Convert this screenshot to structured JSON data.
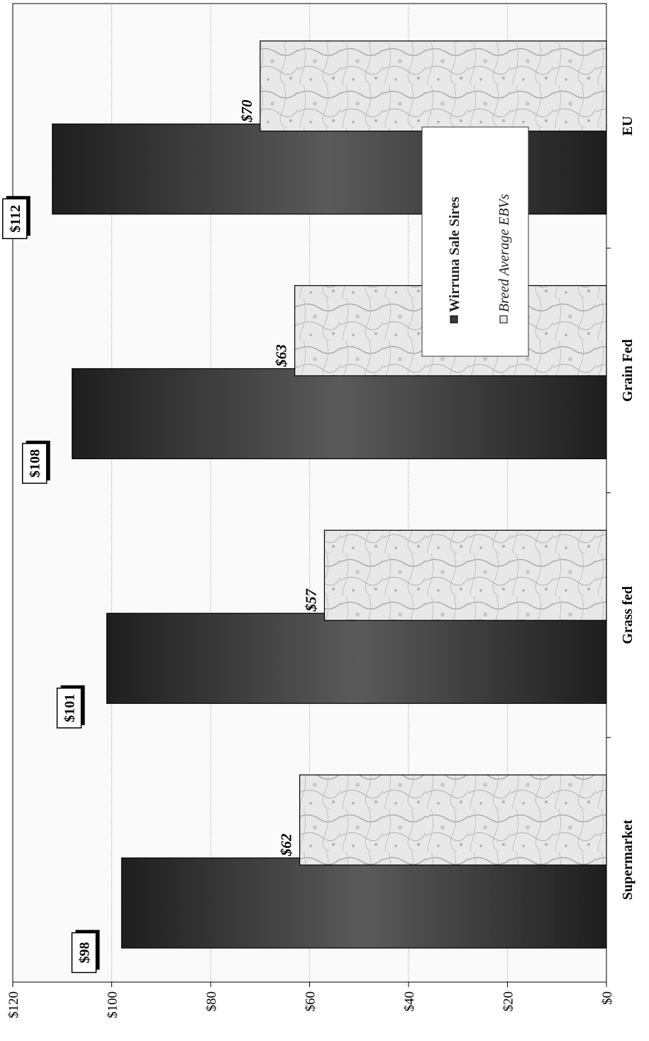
{
  "chart_data": {
    "type": "bar",
    "orientation": "rotated-90-counterclockwise",
    "categories": [
      "Supermarket",
      "Grass fed",
      "Grain Fed",
      "EU"
    ],
    "series": [
      {
        "name": "Wirruna Sale Sires",
        "values": [
          98,
          101,
          108,
          112
        ],
        "labels": [
          "$98",
          "$101",
          "$108",
          "$112"
        ],
        "color": "#3a3a3a"
      },
      {
        "name": "Breed Average EBVs",
        "values": [
          62,
          57,
          63,
          70
        ],
        "labels": [
          "$62",
          "$57",
          "$63",
          "$70"
        ],
        "color": "#e6e6e6"
      }
    ],
    "ylim": [
      0,
      120
    ],
    "yticks": [
      0,
      20,
      40,
      60,
      80,
      100,
      120
    ],
    "ytick_labels": [
      "$0",
      "$20",
      "$40",
      "$60",
      "$80",
      "$100",
      "$120"
    ],
    "grid": true,
    "legend": "center-right"
  }
}
